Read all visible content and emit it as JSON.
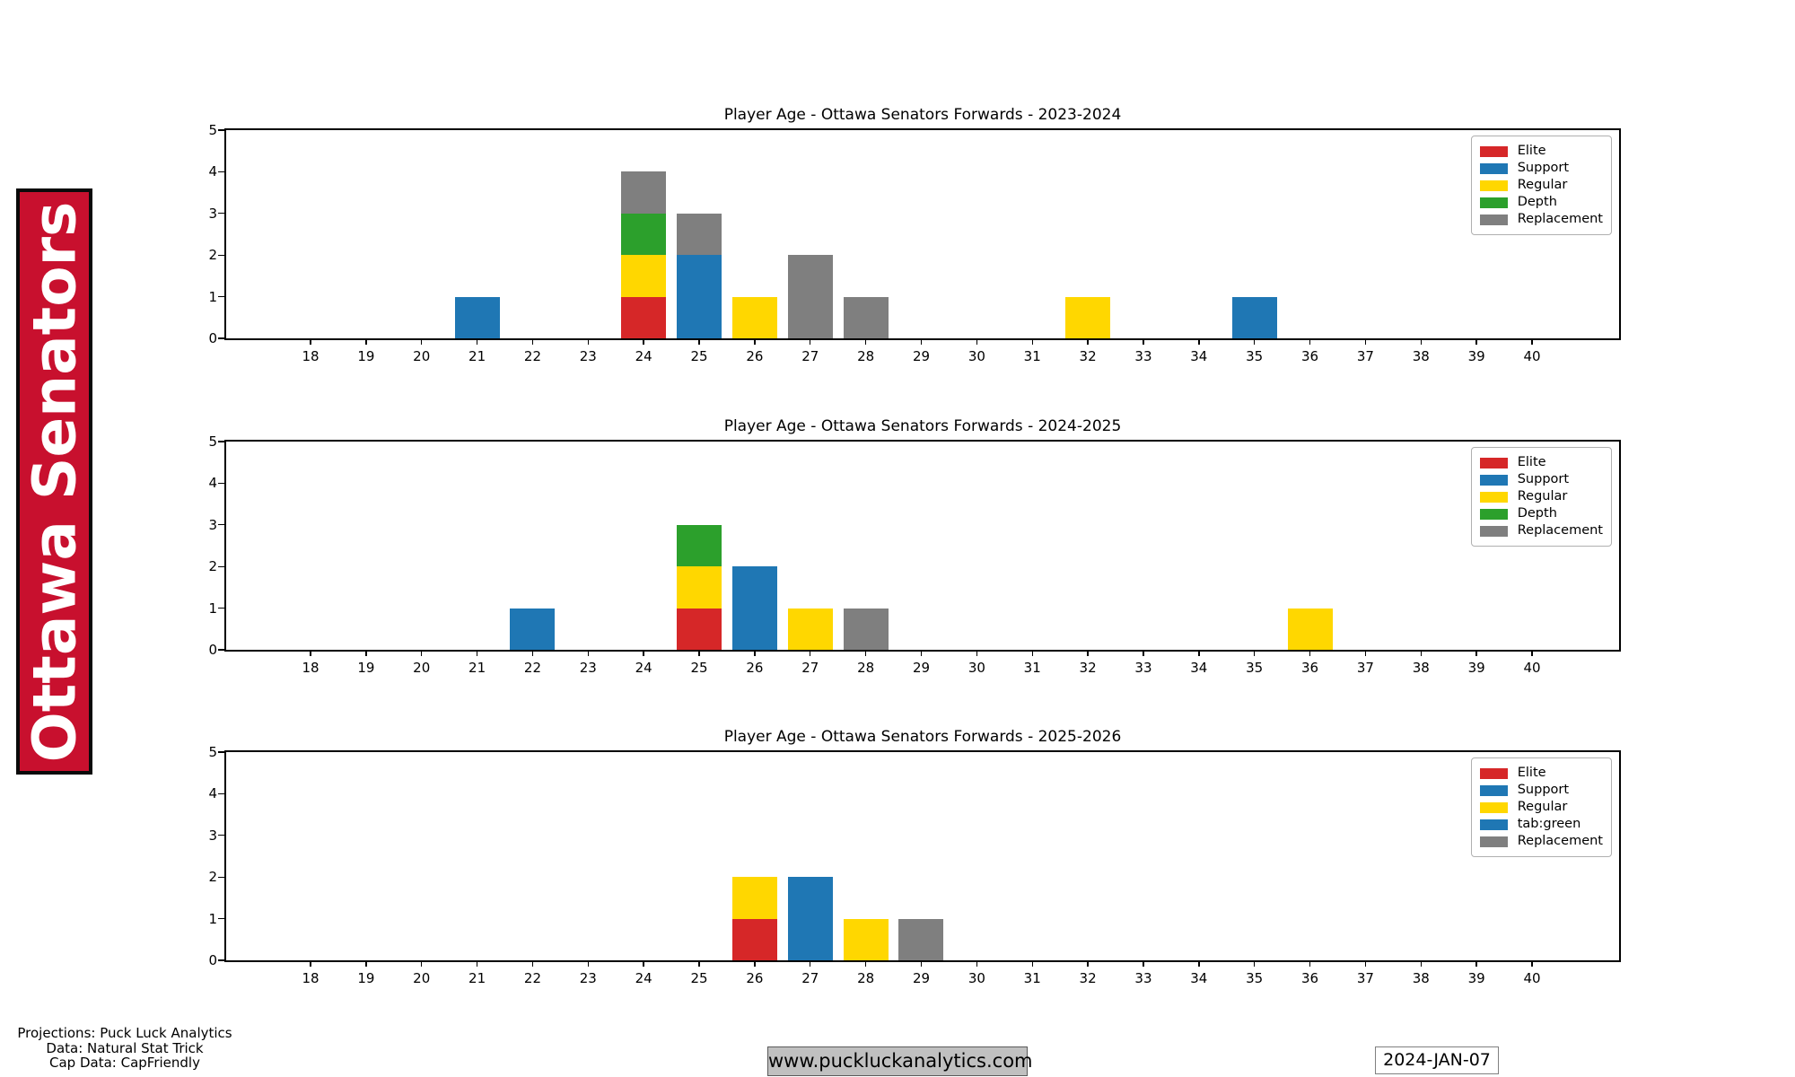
{
  "banner": {
    "text": "Ottawa Senators",
    "bg_color": "#C8102E",
    "text_color": "#ffffff"
  },
  "segment_colors": {
    "Elite": "#d62728",
    "Support": "#1f77b4",
    "Regular": "#ffd700",
    "Depth": "#2ca02c",
    "Replacement": "#7f7f7f",
    "tab:green": "#1f77b4"
  },
  "chart_data": [
    {
      "type": "bar",
      "stacked": true,
      "title": "Player Age - Ottawa Senators Forwards - 2023-2024",
      "xlabel": "",
      "ylabel": "",
      "xlim": [
        16.5,
        41.6
      ],
      "ylim": [
        0,
        5
      ],
      "x_ticks": [
        18,
        19,
        20,
        21,
        22,
        23,
        24,
        25,
        26,
        27,
        28,
        29,
        30,
        31,
        32,
        33,
        34,
        35,
        36,
        37,
        38,
        39,
        40
      ],
      "y_ticks": [
        0,
        1,
        2,
        3,
        4,
        5
      ],
      "grid": false,
      "legend_position": "upper right",
      "legend": [
        {
          "label": "Elite",
          "color": "#d62728"
        },
        {
          "label": "Support",
          "color": "#1f77b4"
        },
        {
          "label": "Regular",
          "color": "#ffd700"
        },
        {
          "label": "Depth",
          "color": "#2ca02c"
        },
        {
          "label": "Replacement",
          "color": "#7f7f7f"
        }
      ],
      "bars": [
        {
          "age": 21,
          "segments": [
            {
              "tier": "Support",
              "value": 1
            }
          ]
        },
        {
          "age": 24,
          "segments": [
            {
              "tier": "Elite",
              "value": 1
            },
            {
              "tier": "Regular",
              "value": 1
            },
            {
              "tier": "Depth",
              "value": 1
            },
            {
              "tier": "Replacement",
              "value": 1
            }
          ]
        },
        {
          "age": 25,
          "segments": [
            {
              "tier": "Support",
              "value": 2
            },
            {
              "tier": "Replacement",
              "value": 1
            }
          ]
        },
        {
          "age": 26,
          "segments": [
            {
              "tier": "Regular",
              "value": 1
            }
          ]
        },
        {
          "age": 27,
          "segments": [
            {
              "tier": "Replacement",
              "value": 2
            }
          ]
        },
        {
          "age": 28,
          "segments": [
            {
              "tier": "Replacement",
              "value": 1
            }
          ]
        },
        {
          "age": 32,
          "segments": [
            {
              "tier": "Regular",
              "value": 1
            }
          ]
        },
        {
          "age": 35,
          "segments": [
            {
              "tier": "Support",
              "value": 1
            }
          ]
        }
      ]
    },
    {
      "type": "bar",
      "stacked": true,
      "title": "Player Age - Ottawa Senators Forwards - 2024-2025",
      "xlabel": "",
      "ylabel": "",
      "xlim": [
        16.5,
        41.6
      ],
      "ylim": [
        0,
        5
      ],
      "x_ticks": [
        18,
        19,
        20,
        21,
        22,
        23,
        24,
        25,
        26,
        27,
        28,
        29,
        30,
        31,
        32,
        33,
        34,
        35,
        36,
        37,
        38,
        39,
        40
      ],
      "y_ticks": [
        0,
        1,
        2,
        3,
        4,
        5
      ],
      "grid": false,
      "legend_position": "upper right",
      "legend": [
        {
          "label": "Elite",
          "color": "#d62728"
        },
        {
          "label": "Support",
          "color": "#1f77b4"
        },
        {
          "label": "Regular",
          "color": "#ffd700"
        },
        {
          "label": "Depth",
          "color": "#2ca02c"
        },
        {
          "label": "Replacement",
          "color": "#7f7f7f"
        }
      ],
      "bars": [
        {
          "age": 22,
          "segments": [
            {
              "tier": "Support",
              "value": 1
            }
          ]
        },
        {
          "age": 25,
          "segments": [
            {
              "tier": "Elite",
              "value": 1
            },
            {
              "tier": "Regular",
              "value": 1
            },
            {
              "tier": "Depth",
              "value": 1
            }
          ]
        },
        {
          "age": 26,
          "segments": [
            {
              "tier": "Support",
              "value": 2
            }
          ]
        },
        {
          "age": 27,
          "segments": [
            {
              "tier": "Regular",
              "value": 1
            }
          ]
        },
        {
          "age": 28,
          "segments": [
            {
              "tier": "Replacement",
              "value": 1
            }
          ]
        },
        {
          "age": 36,
          "segments": [
            {
              "tier": "Regular",
              "value": 1
            }
          ]
        }
      ]
    },
    {
      "type": "bar",
      "stacked": true,
      "title": "Player Age - Ottawa Senators Forwards - 2025-2026",
      "xlabel": "",
      "ylabel": "",
      "xlim": [
        16.5,
        41.6
      ],
      "ylim": [
        0,
        5
      ],
      "x_ticks": [
        18,
        19,
        20,
        21,
        22,
        23,
        24,
        25,
        26,
        27,
        28,
        29,
        30,
        31,
        32,
        33,
        34,
        35,
        36,
        37,
        38,
        39,
        40
      ],
      "y_ticks": [
        0,
        1,
        2,
        3,
        4,
        5
      ],
      "grid": false,
      "legend_position": "upper right",
      "legend": [
        {
          "label": "Elite",
          "color": "#d62728"
        },
        {
          "label": "Support",
          "color": "#1f77b4"
        },
        {
          "label": "Regular",
          "color": "#ffd700"
        },
        {
          "label": "tab:green",
          "color": "#1f77b4"
        },
        {
          "label": "Replacement",
          "color": "#7f7f7f"
        }
      ],
      "bars": [
        {
          "age": 26,
          "segments": [
            {
              "tier": "Elite",
              "value": 1
            },
            {
              "tier": "Regular",
              "value": 1
            }
          ]
        },
        {
          "age": 27,
          "segments": [
            {
              "tier": "Support",
              "value": 2
            }
          ]
        },
        {
          "age": 28,
          "segments": [
            {
              "tier": "Regular",
              "value": 1
            }
          ]
        },
        {
          "age": 29,
          "segments": [
            {
              "tier": "Replacement",
              "value": 1
            }
          ]
        }
      ]
    }
  ],
  "footer": {
    "credits": [
      "Projections: Puck Luck Analytics",
      "Data: Natural Stat Trick",
      "Cap Data: CapFriendly"
    ],
    "website": "www.puckluckanalytics.com",
    "date": "2024-JAN-07"
  }
}
